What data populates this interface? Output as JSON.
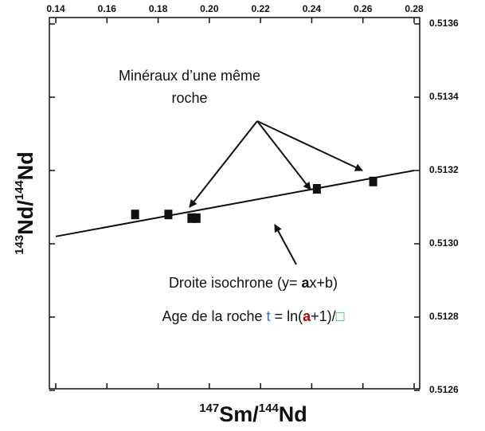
{
  "chart_data": {
    "type": "scatter",
    "x_label_parts": [
      "147",
      "Sm/",
      "144",
      "Nd"
    ],
    "y_label_parts": [
      "143",
      "Nd/",
      "144",
      "Nd"
    ],
    "x": [
      0.171,
      0.184,
      0.193,
      0.195,
      0.242,
      0.264
    ],
    "values": [
      0.51308,
      0.51308,
      0.51307,
      0.51307,
      0.51315,
      0.51317
    ],
    "color": "#111111",
    "fit": {
      "x": [
        0.14,
        0.28
      ],
      "y": [
        0.51302,
        0.5132
      ],
      "color": "#111111"
    },
    "xlim": [
      0.14,
      0.28
    ],
    "ylim": [
      0.5126,
      0.5136
    ],
    "xticks": [
      0.14,
      0.16,
      0.18,
      {
        "value": 0.2,
        "label": "0.20"
      },
      0.22,
      0.24,
      0.26,
      0.28
    ],
    "yticks": [
      0.5126,
      0.5128,
      {
        "value": 0.513,
        "label": "0.5130"
      },
      0.5132,
      0.5134,
      0.5136
    ],
    "xtick_position": "top",
    "ytick_position": "right",
    "annotations": {
      "minerals": [
        "Minéraux d’une même",
        "roche"
      ],
      "isochron": [
        {
          "text": "Droite isochrone (y= "
        },
        {
          "text": "a",
          "bold": true
        },
        {
          "text": "x+b)"
        }
      ],
      "age": [
        {
          "text": "Age de la roche "
        },
        {
          "text": "t",
          "color": "#2e75b6"
        },
        {
          "text": " = ln("
        },
        {
          "text": "a",
          "bold": true,
          "color": "#c00000"
        },
        {
          "text": "+1)/"
        },
        {
          "text": "□",
          "color": "#00b050"
        }
      ]
    }
  }
}
